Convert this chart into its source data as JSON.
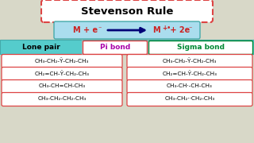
{
  "title": "Stevenson Rule",
  "title_bg": "#ffffff",
  "title_border": "#dd4444",
  "title_border_style": "dashed",
  "eq_bg": "#aaddee",
  "eq_border": "#44aaaa",
  "header_bg": "#55cccc",
  "header_border": "#44aaaa",
  "lp_text": "Lone pair",
  "pi_text": "Pi bond",
  "pi_border": "#dd4444",
  "pi_bg": "#ffffff",
  "sigma_text": "Sigma bond",
  "sigma_color": "#008833",
  "sigma_border": "#008833",
  "sigma_bg": "#ffffff",
  "lp_color": "#000000",
  "pi_color": "#aa00aa",
  "overall_bg": "#d8d8c8",
  "left_formulas": [
    "CH₃-CH₂-Ỹ-CH₂-CH₃",
    "CH₂=CH-Ỹ-CH₂-CH₃",
    "CH₃-CH=CH-CH₃",
    "CH₃-CH₂-CH₂-CH₃"
  ],
  "right_formulas": [
    "CH₃-CH₂-Ỹ-CH₂-CH₃",
    "CH₂=CH-Ỹ-CH₂-CH₃",
    "CH₃-CH·-CH-CH₃",
    "CH₃-CH₂··CH₂-CH₃"
  ],
  "left_box_border": "#dd4444",
  "right_box_border": "#dd4444",
  "formula_bg": "#ffffff",
  "arrow_color": "#000077"
}
